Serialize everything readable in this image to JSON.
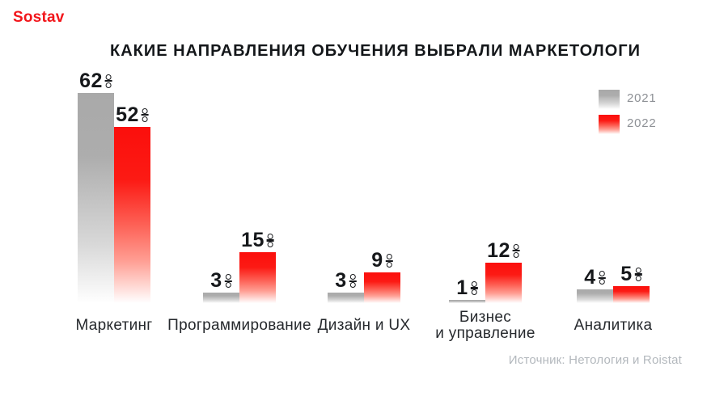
{
  "logo": {
    "text": "Sostav",
    "color": "#f2161b"
  },
  "chart_data": {
    "type": "bar",
    "title": "КАКИЕ НАПРАВЛЕНИЯ ОБУЧЕНИЯ ВЫБРАЛИ МАРКЕТОЛОГИ",
    "unit": "%",
    "categories": [
      "Маркетинг",
      "Программирование",
      "Дизайн и UX",
      "Бизнес\nи управление",
      "Аналитика"
    ],
    "series": [
      {
        "name": "2021",
        "color": "#a9a9a9",
        "values": [
          62,
          3,
          3,
          1,
          4
        ]
      },
      {
        "name": "2022",
        "color": "#fb0f0c",
        "values": [
          52,
          15,
          9,
          12,
          5
        ]
      }
    ],
    "value_labels": [
      [
        "62%",
        "3%",
        "3%",
        "1%",
        "4%"
      ],
      [
        "52%",
        "15%",
        "9%",
        "12%",
        "5%"
      ]
    ],
    "ylim": [
      0,
      65
    ],
    "grid": false,
    "legend_position": "top-right",
    "bar_style": "gradient fade to white at bottom",
    "source": "Источник: Нетология и Roistat"
  }
}
